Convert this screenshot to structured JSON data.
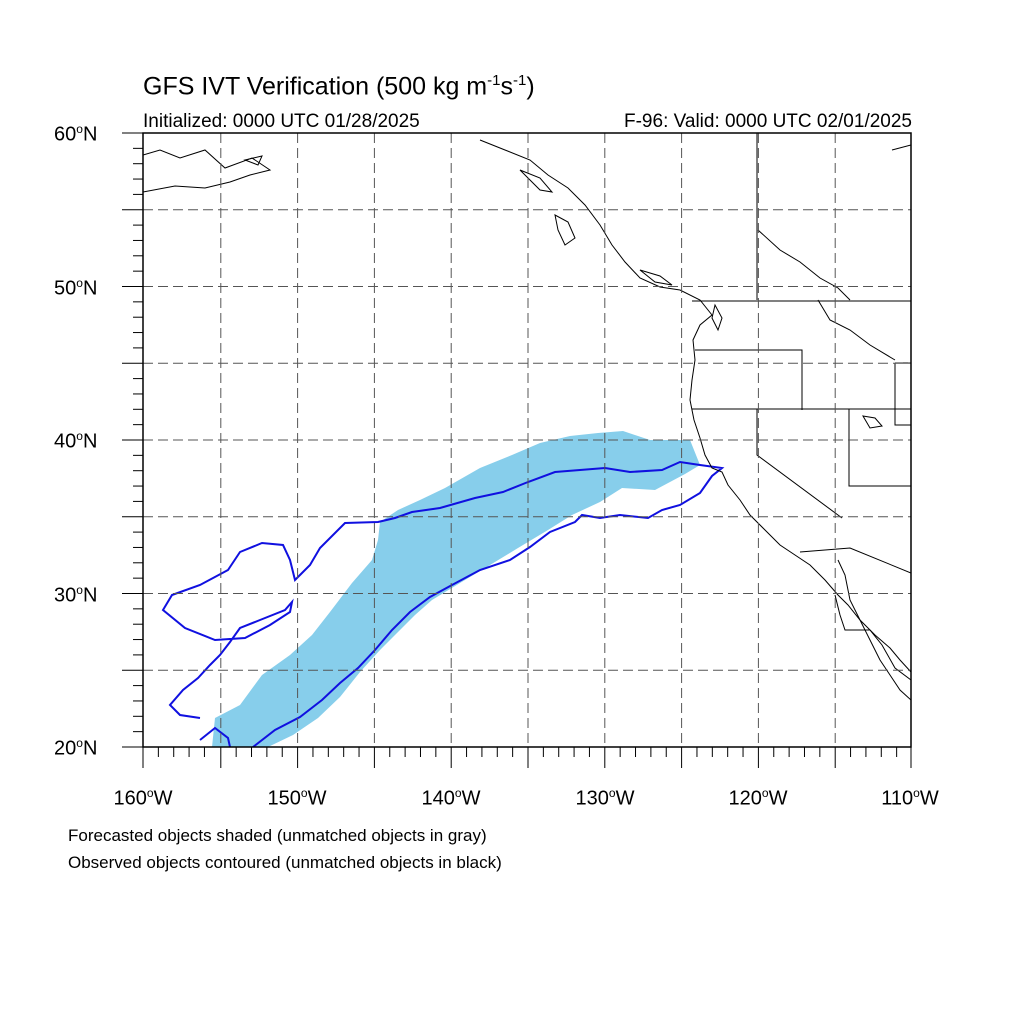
{
  "title": {
    "main": "GFS IVT Verification (500 kg m",
    "exp1": "-1",
    "mid": "s",
    "exp2": "-1",
    "end": ")"
  },
  "initialized": "Initialized: 0000 UTC 01/28/2025",
  "valid": "F-96: Valid: 0000 UTC 02/01/2025",
  "degree_symbol": "o",
  "lat_labels": [
    {
      "value": "60",
      "suffix": "N"
    },
    {
      "value": "50",
      "suffix": "N"
    },
    {
      "value": "40",
      "suffix": "N"
    },
    {
      "value": "30",
      "suffix": "N"
    },
    {
      "value": "20",
      "suffix": "N"
    }
  ],
  "lon_labels": [
    {
      "value": "160",
      "suffix": "W"
    },
    {
      "value": "150",
      "suffix": "W"
    },
    {
      "value": "140",
      "suffix": "W"
    },
    {
      "value": "130",
      "suffix": "W"
    },
    {
      "value": "120",
      "suffix": "W"
    },
    {
      "value": "110",
      "suffix": "W"
    }
  ],
  "map_extent": {
    "lon_min": -160,
    "lon_max": -110,
    "lat_min": 20,
    "lat_max": 60
  },
  "gridlines": {
    "style": "dashed",
    "lon_step_deg": 5,
    "lat_step_deg": 5
  },
  "colors": {
    "forecast_fill": "#87ceeb",
    "observed_contour": "#1010e0",
    "coastline": "#000000",
    "grid": "#555555"
  },
  "notes": {
    "line1": "Forecasted objects shaded (unmatched objects in gray)",
    "line2": "Observed objects contoured (unmatched objects in black)"
  }
}
